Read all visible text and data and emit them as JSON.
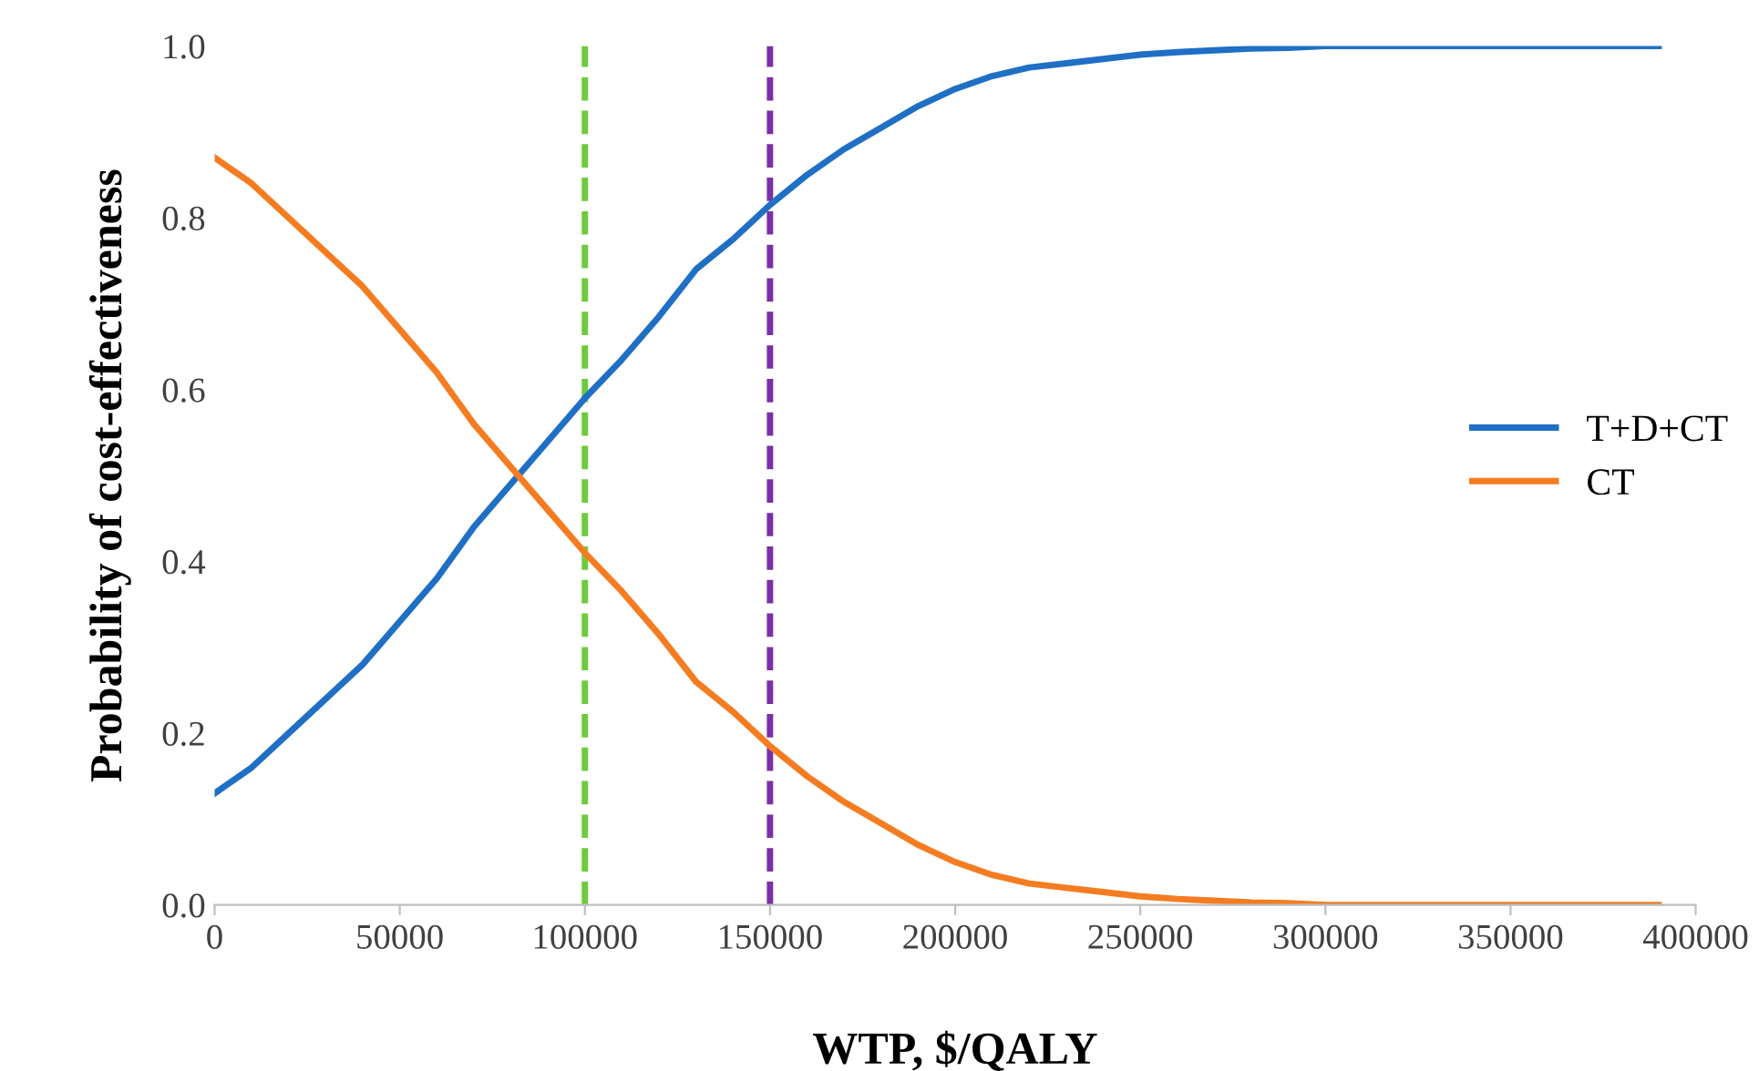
{
  "chart_data": {
    "type": "line",
    "xlabel": "WTP, $/QALY",
    "ylabel": "Probability of cost-effectiveness",
    "x": [
      0,
      10000,
      20000,
      30000,
      40000,
      50000,
      60000,
      70000,
      80000,
      90000,
      100000,
      110000,
      120000,
      130000,
      140000,
      150000,
      160000,
      170000,
      180000,
      190000,
      200000,
      210000,
      220000,
      230000,
      240000,
      250000,
      260000,
      270000,
      280000,
      290000,
      300000,
      320000,
      340000,
      360000,
      390000
    ],
    "series": [
      {
        "name": "T+D+CT",
        "color": "#1f6fc5",
        "values": [
          0.13,
          0.16,
          0.2,
          0.24,
          0.28,
          0.33,
          0.38,
          0.44,
          0.49,
          0.54,
          0.59,
          0.635,
          0.685,
          0.74,
          0.775,
          0.815,
          0.85,
          0.88,
          0.905,
          0.93,
          0.95,
          0.965,
          0.975,
          0.98,
          0.985,
          0.99,
          0.993,
          0.995,
          0.997,
          0.998,
          1.0,
          1.0,
          1.0,
          1.0,
          1.0
        ]
      },
      {
        "name": "CT",
        "color": "#f57c20",
        "values": [
          0.87,
          0.84,
          0.8,
          0.76,
          0.72,
          0.67,
          0.62,
          0.56,
          0.51,
          0.46,
          0.41,
          0.365,
          0.315,
          0.26,
          0.225,
          0.185,
          0.15,
          0.12,
          0.095,
          0.07,
          0.05,
          0.035,
          0.025,
          0.02,
          0.015,
          0.01,
          0.007,
          0.005,
          0.003,
          0.002,
          0.0,
          0.0,
          0.0,
          0.0,
          0.0
        ]
      }
    ],
    "xlim": [
      0,
      400000
    ],
    "xticks": [
      0,
      50000,
      100000,
      150000,
      200000,
      250000,
      300000,
      350000,
      400000
    ],
    "ylim": [
      0,
      1
    ],
    "yticks": [
      {
        "value": 0,
        "label": "0.0"
      },
      {
        "value": 0.2,
        "label": "0.2"
      },
      {
        "value": 0.4,
        "label": "0.4"
      },
      {
        "value": 0.6,
        "label": "0.6"
      },
      {
        "value": 0.8,
        "label": "0.8"
      },
      {
        "value": 1,
        "label": "1.0"
      }
    ],
    "ref_lines": [
      {
        "axis": "x",
        "value": 100000,
        "color": "#6ecb3c",
        "line_style": "dashed"
      },
      {
        "axis": "x",
        "value": 150000,
        "color": "#7b2fa8",
        "line_style": "dashed"
      }
    ],
    "legend": "right",
    "grid": false,
    "marker": "none",
    "line_style": "solid"
  }
}
